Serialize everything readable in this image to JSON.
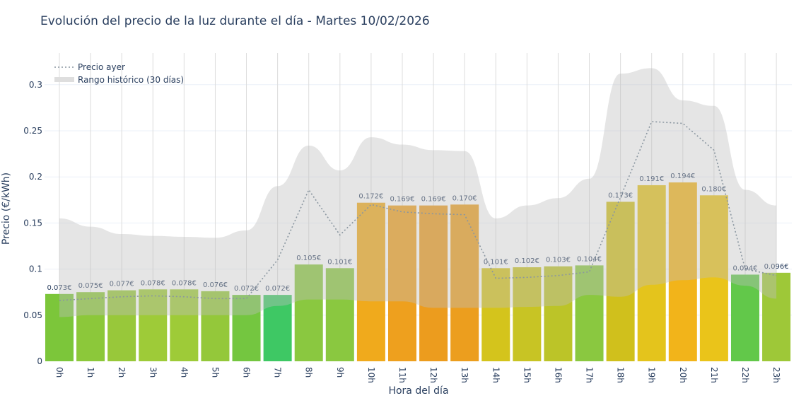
{
  "chart_data": {
    "type": "bar",
    "title": "Evolución del precio de la luz durante el día - Martes 10/02/2026",
    "xlabel": "Hora del día",
    "ylabel": "Precio (€/kWh)",
    "ylim": [
      0,
      0.33
    ],
    "yticks": [
      0,
      0.05,
      0.1,
      0.15,
      0.2,
      0.25,
      0.3
    ],
    "ytick_labels": [
      "0",
      "0.05",
      "0.1",
      "0.15",
      "0.2",
      "0.25",
      "0.3"
    ],
    "grid": true,
    "legend_position": "top-left",
    "categories": [
      "0h",
      "1h",
      "2h",
      "3h",
      "4h",
      "5h",
      "6h",
      "7h",
      "8h",
      "9h",
      "10h",
      "11h",
      "12h",
      "13h",
      "14h",
      "15h",
      "16h",
      "17h",
      "18h",
      "19h",
      "20h",
      "21h",
      "22h",
      "23h"
    ],
    "values": [
      0.073,
      0.075,
      0.077,
      0.078,
      0.078,
      0.076,
      0.072,
      0.072,
      0.105,
      0.101,
      0.172,
      0.169,
      0.169,
      0.17,
      0.101,
      0.102,
      0.103,
      0.104,
      0.173,
      0.191,
      0.194,
      0.18,
      0.094,
      0.096
    ],
    "labels": [
      "0.073€",
      "0.075€",
      "0.077€",
      "0.078€",
      "0.078€",
      "0.076€",
      "0.072€",
      "0.072€",
      "0.105€",
      "0.101€",
      "0.172€",
      "0.169€",
      "0.169€",
      "0.170€",
      "0.101€",
      "0.102€",
      "0.103€",
      "0.104€",
      "0.173€",
      "0.191€",
      "0.194€",
      "0.180€",
      "0.094€",
      "0.096€"
    ],
    "bar_colors": [
      "#7cc63a",
      "#8cc83a",
      "#98c83a",
      "#9ecb38",
      "#9ecb38",
      "#94c83a",
      "#74c640",
      "#3ec864",
      "#8ac840",
      "#8ac840",
      "#f0aa1c",
      "#eea01e",
      "#ec9c1e",
      "#ec9e1e",
      "#d4c41c",
      "#c8c424",
      "#bcc428",
      "#8ac840",
      "#d0c01c",
      "#e4c41c",
      "#f2b41a",
      "#eac41a",
      "#62c84a",
      "#9ec838"
    ],
    "series": [
      {
        "name": "Precio ayer",
        "type": "line",
        "color": "#8a96a0",
        "values": [
          0.066,
          0.068,
          0.07,
          0.071,
          0.07,
          0.068,
          0.068,
          0.11,
          0.186,
          0.137,
          0.17,
          0.162,
          0.16,
          0.159,
          0.09,
          0.091,
          0.093,
          0.097,
          0.178,
          0.26,
          0.258,
          0.229,
          0.1,
          0.093
        ]
      },
      {
        "name": "Rango histórico (30 días)",
        "type": "band",
        "color": "#d9d9d9",
        "upper": [
          0.155,
          0.146,
          0.138,
          0.136,
          0.135,
          0.134,
          0.142,
          0.19,
          0.234,
          0.207,
          0.243,
          0.235,
          0.229,
          0.228,
          0.155,
          0.169,
          0.177,
          0.198,
          0.312,
          0.318,
          0.283,
          0.277,
          0.186,
          0.169
        ],
        "lower": [
          0.048,
          0.05,
          0.05,
          0.05,
          0.05,
          0.05,
          0.05,
          0.06,
          0.067,
          0.067,
          0.065,
          0.065,
          0.058,
          0.058,
          0.058,
          0.059,
          0.06,
          0.072,
          0.07,
          0.083,
          0.088,
          0.091,
          0.082,
          0.068
        ]
      }
    ]
  }
}
